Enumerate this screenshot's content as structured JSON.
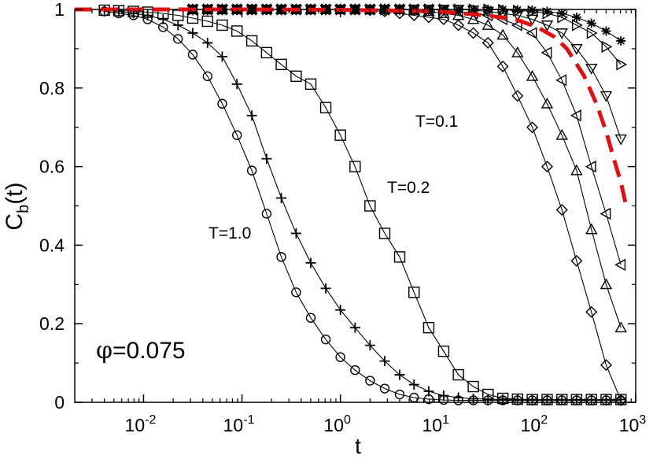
{
  "chart_data": {
    "type": "scatter",
    "title": "",
    "xlabel": "t",
    "ylabel": "C",
    "ylabel_sub": "b",
    "ylabel_suffix": "(t)",
    "xscale": "log",
    "xlim": [
      0.002,
      1000
    ],
    "ylim": [
      0,
      1
    ],
    "grid": false,
    "x_ticks": [
      {
        "base": "10",
        "exp": "-2",
        "value": 0.01
      },
      {
        "base": "10",
        "exp": "-1",
        "value": 0.1
      },
      {
        "base": "10",
        "exp": "0",
        "value": 1
      },
      {
        "base": "10",
        "exp": "1",
        "value": 10
      },
      {
        "base": "10",
        "exp": "2",
        "value": 100
      },
      {
        "base": "10",
        "exp": "3",
        "value": 1000
      }
    ],
    "y_ticks": [
      "0",
      "0.2",
      "0.4",
      "0.6",
      "0.8",
      "1"
    ],
    "y_tick_values": [
      0,
      0.2,
      0.4,
      0.6,
      0.8,
      1
    ],
    "annotations": {
      "phi_symbol": "φ",
      "phi_value": "=0.075",
      "t10": "T=1.0",
      "t02": "T=0.2",
      "t01": "T=0.1"
    },
    "colors": {
      "marker": "#000000",
      "dashed": "#dd1111"
    },
    "series": [
      {
        "marker": "circle",
        "x": [
          0.004,
          0.0056,
          0.0079,
          0.011,
          0.0158,
          0.0224,
          0.0316,
          0.0447,
          0.063,
          0.089,
          0.126,
          0.178,
          0.251,
          0.355,
          0.5,
          0.71,
          1.0,
          1.41,
          2.0,
          2.82,
          4.0,
          5.6,
          7.9,
          11.2,
          15.8,
          22.4,
          31.6,
          44.7,
          63,
          89,
          126,
          178,
          251,
          355,
          501,
          708
        ],
        "y": [
          0.995,
          0.99,
          0.985,
          0.975,
          0.955,
          0.925,
          0.885,
          0.83,
          0.76,
          0.68,
          0.59,
          0.48,
          0.37,
          0.28,
          0.215,
          0.16,
          0.115,
          0.082,
          0.055,
          0.035,
          0.02,
          0.012,
          0.008,
          0.006,
          0.005,
          0.005,
          0.005,
          0.005,
          0.005,
          0.005,
          0.005,
          0.005,
          0.005,
          0.005,
          0.005,
          0.005
        ]
      },
      {
        "marker": "plus",
        "x": [
          0.004,
          0.0056,
          0.0079,
          0.011,
          0.0158,
          0.0224,
          0.0316,
          0.0447,
          0.063,
          0.089,
          0.126,
          0.178,
          0.251,
          0.355,
          0.5,
          0.71,
          1.0,
          1.41,
          2.0,
          2.82,
          4.0,
          5.6,
          7.9,
          11.2,
          15.8,
          22.4,
          31.6,
          44.7,
          63,
          89,
          126,
          178,
          251,
          355,
          501,
          708
        ],
        "y": [
          0.997,
          0.995,
          0.99,
          0.985,
          0.975,
          0.96,
          0.94,
          0.915,
          0.88,
          0.81,
          0.73,
          0.62,
          0.52,
          0.43,
          0.355,
          0.29,
          0.235,
          0.19,
          0.145,
          0.105,
          0.07,
          0.045,
          0.028,
          0.017,
          0.012,
          0.009,
          0.008,
          0.007,
          0.007,
          0.007,
          0.007,
          0.007,
          0.007,
          0.007,
          0.007,
          0.007
        ]
      },
      {
        "marker": "square",
        "x": [
          0.004,
          0.0056,
          0.0079,
          0.011,
          0.0158,
          0.0224,
          0.0316,
          0.0447,
          0.063,
          0.089,
          0.126,
          0.178,
          0.251,
          0.355,
          0.5,
          0.71,
          1.0,
          1.41,
          2.0,
          2.82,
          4.0,
          5.6,
          7.9,
          11.2,
          15.8,
          22.4,
          31.6,
          44.7,
          63,
          89,
          126,
          178,
          251,
          355,
          501,
          708
        ],
        "y": [
          0.998,
          0.997,
          0.995,
          0.993,
          0.99,
          0.985,
          0.978,
          0.97,
          0.96,
          0.945,
          0.92,
          0.89,
          0.86,
          0.83,
          0.81,
          0.75,
          0.68,
          0.6,
          0.5,
          0.43,
          0.37,
          0.28,
          0.19,
          0.13,
          0.07,
          0.04,
          0.02,
          0.01,
          0.008,
          0.007,
          0.007,
          0.007,
          0.007,
          0.007,
          0.007,
          0.007
        ]
      },
      {
        "marker": "diamond",
        "x": [
          0.0316,
          0.0447,
          0.063,
          0.089,
          0.126,
          0.178,
          0.251,
          0.355,
          0.5,
          0.71,
          1.0,
          1.41,
          2.0,
          2.82,
          4.0,
          5.6,
          7.9,
          11.2,
          15.8,
          22.4,
          31.6,
          44.7,
          63,
          89,
          126,
          178,
          251,
          355,
          501,
          708
        ],
        "y": [
          1.0,
          1.0,
          1.0,
          1.0,
          1.0,
          1.0,
          1.0,
          1.0,
          1.0,
          1.0,
          1.0,
          1.0,
          0.998,
          0.995,
          0.99,
          0.985,
          0.98,
          0.975,
          0.96,
          0.94,
          0.915,
          0.855,
          0.78,
          0.7,
          0.6,
          0.49,
          0.36,
          0.23,
          0.095,
          0.005
        ]
      },
      {
        "marker": "triangle-up",
        "x": [
          0.0316,
          0.0447,
          0.063,
          0.089,
          0.126,
          0.178,
          0.251,
          0.355,
          0.5,
          0.71,
          1.0,
          1.41,
          2.0,
          2.82,
          4.0,
          5.6,
          7.9,
          11.2,
          15.8,
          22.4,
          31.6,
          44.7,
          63,
          89,
          126,
          178,
          251,
          355,
          501,
          708
        ],
        "y": [
          1.0,
          1.0,
          1.0,
          1.0,
          1.0,
          1.0,
          1.0,
          1.0,
          1.0,
          1.0,
          1.0,
          1.0,
          1.0,
          1.0,
          1.0,
          0.998,
          0.995,
          0.99,
          0.985,
          0.975,
          0.96,
          0.935,
          0.89,
          0.83,
          0.76,
          0.68,
          0.59,
          0.44,
          0.3,
          0.19
        ]
      },
      {
        "marker": "triangle-left",
        "x": [
          0.0316,
          0.0447,
          0.063,
          0.089,
          0.126,
          0.178,
          0.251,
          0.355,
          0.5,
          0.71,
          1.0,
          1.41,
          2.0,
          2.82,
          4.0,
          5.6,
          7.9,
          11.2,
          15.8,
          22.4,
          31.6,
          44.7,
          63,
          89,
          126,
          178,
          251,
          355,
          501,
          708
        ],
        "y": [
          1.0,
          1.0,
          1.0,
          1.0,
          1.0,
          1.0,
          1.0,
          1.0,
          1.0,
          1.0,
          1.0,
          1.0,
          1.0,
          1.0,
          1.0,
          1.0,
          1.0,
          0.998,
          0.995,
          0.99,
          0.985,
          0.975,
          0.96,
          0.94,
          0.89,
          0.82,
          0.73,
          0.6,
          0.48,
          0.35
        ]
      },
      {
        "marker": "triangle-down",
        "x": [
          0.0316,
          0.0447,
          0.063,
          0.089,
          0.126,
          0.178,
          0.251,
          0.355,
          0.5,
          0.71,
          1.0,
          1.41,
          2.0,
          2.82,
          4.0,
          5.6,
          7.9,
          11.2,
          15.8,
          22.4,
          31.6,
          44.7,
          63,
          89,
          126,
          178,
          251,
          355,
          501,
          708
        ],
        "y": [
          1.0,
          1.0,
          1.0,
          1.0,
          1.0,
          1.0,
          1.0,
          1.0,
          1.0,
          1.0,
          1.0,
          1.0,
          1.0,
          1.0,
          1.0,
          1.0,
          1.0,
          1.0,
          1.0,
          0.998,
          0.995,
          0.99,
          0.985,
          0.975,
          0.96,
          0.94,
          0.9,
          0.85,
          0.78,
          0.67
        ]
      },
      {
        "marker": "triangle-right",
        "x": [
          0.0316,
          0.0447,
          0.063,
          0.089,
          0.126,
          0.178,
          0.251,
          0.355,
          0.5,
          0.71,
          1.0,
          1.41,
          2.0,
          2.82,
          4.0,
          5.6,
          7.9,
          11.2,
          15.8,
          22.4,
          31.6,
          44.7,
          63,
          89,
          126,
          178,
          251,
          355,
          501,
          708
        ],
        "y": [
          1.0,
          1.0,
          1.0,
          1.0,
          1.0,
          1.0,
          1.0,
          1.0,
          1.0,
          1.0,
          1.0,
          1.0,
          1.0,
          1.0,
          1.0,
          1.0,
          1.0,
          1.0,
          1.0,
          1.0,
          1.0,
          0.999,
          0.997,
          0.995,
          0.99,
          0.98,
          0.96,
          0.94,
          0.905,
          0.86
        ]
      },
      {
        "marker": "star",
        "x": [
          0.0316,
          0.0447,
          0.063,
          0.089,
          0.126,
          0.178,
          0.251,
          0.355,
          0.5,
          0.71,
          1.0,
          1.41,
          2.0,
          2.82,
          4.0,
          5.6,
          7.9,
          11.2,
          15.8,
          22.4,
          31.6,
          44.7,
          63,
          89,
          126,
          178,
          251,
          355,
          501,
          708
        ],
        "y": [
          1.0,
          1.0,
          1.0,
          1.0,
          1.0,
          1.0,
          1.0,
          1.0,
          1.0,
          1.0,
          1.0,
          1.0,
          1.0,
          1.0,
          1.0,
          1.0,
          1.0,
          1.0,
          1.0,
          1.0,
          1.0,
          1.0,
          0.999,
          0.998,
          0.995,
          0.99,
          0.98,
          0.965,
          0.945,
          0.92
        ]
      }
    ],
    "dashed_line": {
      "x": [
        0.002,
        0.01,
        0.1,
        1,
        10,
        30,
        60,
        100,
        150,
        200,
        300,
        400,
        500,
        600,
        708,
        800
      ],
      "y": [
        1.0,
        1.0,
        1.0,
        0.999,
        0.995,
        0.985,
        0.975,
        0.955,
        0.93,
        0.9,
        0.83,
        0.76,
        0.69,
        0.62,
        0.56,
        0.5
      ]
    }
  }
}
